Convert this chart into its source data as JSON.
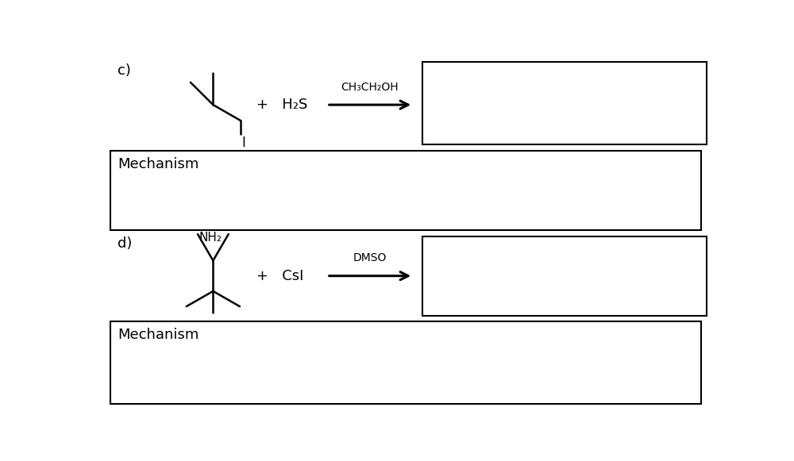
{
  "background": "#ffffff",
  "text_color": "#000000",
  "label_c": "c)",
  "label_d": "d)",
  "mechanism_text": "Mechanism",
  "reagent_c": "+   H₂S",
  "solvent_c": "CH₃CH₂OH",
  "reagent_d": "+   CsI",
  "solvent_d": "DMSO",
  "nh2_label": "NH₂",
  "iodide_label": "I"
}
